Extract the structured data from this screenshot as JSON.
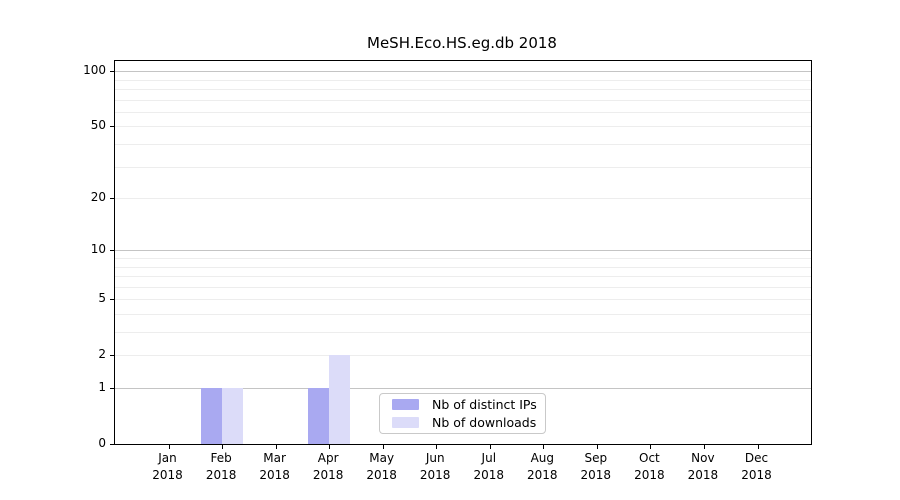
{
  "chart_data": {
    "type": "bar",
    "title": "MeSH.Eco.HS.eg.db 2018",
    "xlabel": "",
    "ylabel": "",
    "x_tick_year": "2018",
    "categories": [
      "Jan",
      "Feb",
      "Mar",
      "Apr",
      "May",
      "Jun",
      "Jul",
      "Aug",
      "Sep",
      "Oct",
      "Nov",
      "Dec"
    ],
    "series": [
      {
        "name": "Nb of distinct IPs",
        "color": "#a9a9f1",
        "values": [
          0,
          1,
          0,
          1,
          0,
          0,
          0,
          0,
          0,
          0,
          0,
          0
        ]
      },
      {
        "name": "Nb of downloads",
        "color": "#dcdcf9",
        "values": [
          0,
          1,
          0,
          2,
          0,
          0,
          0,
          0,
          0,
          0,
          0,
          0
        ]
      }
    ],
    "y_axis": {
      "scale": "log10(1+x)",
      "tick_values": [
        0,
        1,
        2,
        5,
        10,
        20,
        50,
        100
      ],
      "gridlines_major": [
        1,
        10,
        100
      ],
      "gridlines_minor": [
        2,
        3,
        4,
        5,
        6,
        7,
        8,
        9,
        20,
        30,
        40,
        50,
        60,
        70,
        80,
        90
      ]
    },
    "legend_position": "inside-bottom-center",
    "grid": true
  },
  "colors": {
    "grid_major": "#c4c4c4",
    "grid_minor": "#ededed",
    "axis": "#000000",
    "background": "#ffffff"
  }
}
